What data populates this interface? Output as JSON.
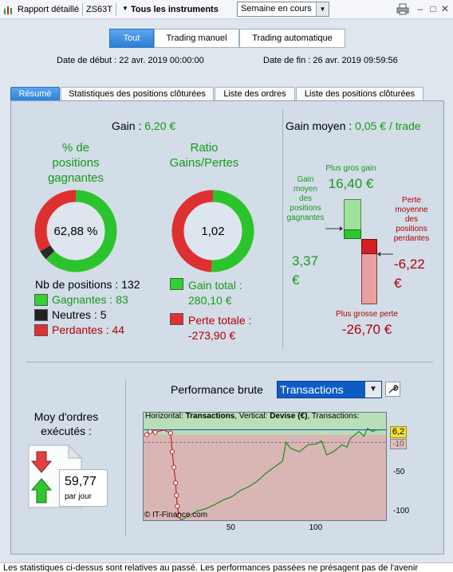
{
  "titlebar": {
    "report_label": "Rapport détaillé",
    "symbol": "ZS63T",
    "instruments": "Tous les instruments",
    "period": "Semaine en cours"
  },
  "filters": {
    "tabs": [
      "Tout",
      "Trading manuel",
      "Trading automatique"
    ],
    "active": "Tout",
    "start_date": "Date de début :  22 avr. 2019 00:00:00",
    "end_date": "Date de fin :  26 avr. 2019 09:59:56"
  },
  "tabs": [
    "Résumé",
    "Statistiques des positions clôturées",
    "Liste des ordres",
    "Liste des positions clôturées"
  ],
  "summary": {
    "gain_label": "Gain : ",
    "gain_value": "6,20 €",
    "win_pct_title_1": "% de",
    "win_pct_title_2": "positions",
    "win_pct_title_3": "gagnantes",
    "win_pct_value": "62,88 %",
    "win_pct_fraction": 0.6288,
    "neutral_fraction": 0.0379,
    "ratio_title_1": "Ratio",
    "ratio_title_2": "Gains/Pertes",
    "ratio_value": "1,02",
    "ratio_fraction": 0.5056,
    "nb_positions": "Nb de positions : 132",
    "winners": "Gagnantes : 83",
    "neutrals": "Neutres : 5",
    "losers": "Perdantes : 44",
    "gain_total_1": "Gain total :",
    "gain_total_2": "280,10 €",
    "loss_total_1": "Perte totale :",
    "loss_total_2": "-273,90 €"
  },
  "avg_gain": {
    "label": "Gain moyen : ",
    "value": "0,05 € / trade",
    "biggest_gain_label": "Plus gros gain",
    "biggest_gain_value": "16,40 €",
    "avg_winning_label": [
      "Gain",
      "moyen",
      "des",
      "positions",
      "gagnantes"
    ],
    "avg_winning_value_1": "3,37",
    "avg_winning_value_2": "€",
    "avg_losing_label": [
      "Perte",
      "moyenne",
      "des",
      "positions",
      "perdantes"
    ],
    "avg_losing_value_1": "-6,22",
    "avg_losing_value_2": "€",
    "biggest_loss_label": "Plus grosse perte",
    "biggest_loss_value": "-26,70 €"
  },
  "orders": {
    "title_1": "Moy d'ordres",
    "title_2": "exécutés :",
    "value": "59,77",
    "unit": "par jour"
  },
  "performance": {
    "title": "Performance brute",
    "mode": "Transactions",
    "chart_caption_parts": [
      "Horizontal: ",
      "Transactions",
      ", Vertical: ",
      "Devise (€)",
      ", Transactions:"
    ],
    "watermark": "© IT-Finance.com",
    "current_value_label": "6,2",
    "marker_label": "-10"
  },
  "chart_data": {
    "type": "line",
    "xlabel": "",
    "ylabel": "",
    "xlim": [
      0,
      140
    ],
    "ylim": [
      -110,
      18
    ],
    "x_ticks": [
      50,
      100
    ],
    "y_ticks": [
      -50,
      -100
    ],
    "reference_lines": [
      {
        "y": 6.2,
        "color": "#1f3fbf"
      },
      {
        "y": -10,
        "color": "#b06060"
      }
    ],
    "series": [
      {
        "color": "#c0202a",
        "x": [
          0,
          2,
          5,
          10,
          14,
          15,
          16,
          17,
          17.5,
          18,
          19,
          20
        ],
        "y": [
          0,
          4,
          3,
          6,
          2,
          -22,
          -42,
          -62,
          -78,
          -92,
          -104,
          -110
        ]
      },
      {
        "color": "#1a8a1a",
        "x": [
          20,
          25,
          30,
          35,
          40,
          45,
          50,
          55,
          60,
          65,
          70,
          75,
          80,
          82,
          85,
          90,
          95,
          100,
          103,
          106,
          110,
          115,
          118,
          120,
          125,
          128,
          130,
          133,
          135,
          137
        ],
        "y": [
          -110,
          -104,
          -98,
          -95,
          -90,
          -84,
          -80,
          -72,
          -67,
          -60,
          -50,
          -42,
          -34,
          -10,
          -18,
          -22,
          -13,
          -12,
          -8,
          -26,
          -22,
          -13,
          -16,
          -5,
          4,
          -2,
          8,
          4,
          6,
          6.2
        ]
      }
    ],
    "markers": {
      "color": "#c0202a",
      "x": [
        0,
        2,
        5,
        14,
        15,
        16,
        17,
        17.5,
        18,
        19
      ],
      "y": [
        0,
        4,
        3,
        2,
        -22,
        -42,
        -62,
        -78,
        -92,
        -104
      ]
    }
  }
}
